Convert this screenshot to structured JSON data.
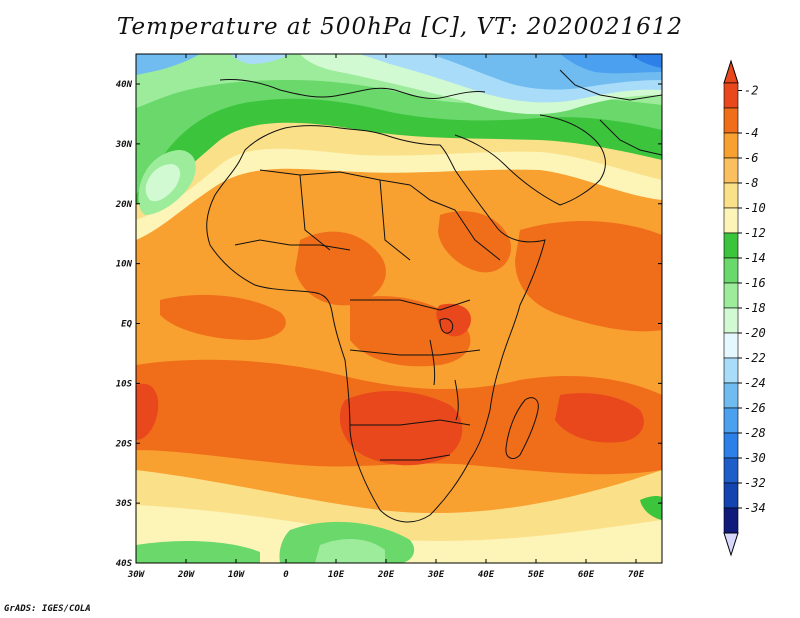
{
  "title": "Temperature at 500hPa [C], VT: 2020021612",
  "credit": "GrADS: IGES/COLA",
  "map": {
    "lon_ticks": [
      "30W",
      "20W",
      "10W",
      "0",
      "10E",
      "20E",
      "30E",
      "40E",
      "50E",
      "60E",
      "70E"
    ],
    "lat_ticks": [
      "40N",
      "30N",
      "20N",
      "10N",
      "EQ",
      "10S",
      "20S",
      "30S",
      "40S"
    ],
    "variable": "temperature",
    "level": "500hPa",
    "units": "C"
  },
  "colorbar": {
    "labels": [
      "-2",
      "-4",
      "-6",
      "-8",
      "-10",
      "-12",
      "-14",
      "-16",
      "-18",
      "-20",
      "-22",
      "-24",
      "-26",
      "-28",
      "-30",
      "-32",
      "-34"
    ],
    "colors": [
      "#e8481c",
      "#f06e1a",
      "#f8a030",
      "#fac060",
      "#fbe08a",
      "#fdf5b8",
      "#3cc43c",
      "#6ad86a",
      "#9cec9c",
      "#d2fad2",
      "#e6f8ff",
      "#a8dcf8",
      "#70bcf0",
      "#4ca0f0",
      "#2c80e8",
      "#1e5ec8",
      "#1444b0",
      "#101a7a"
    ],
    "top_color": "#e8481c",
    "bottom_color": "#d8d8ff"
  },
  "field_colors": {
    "warmest": "#e8481c",
    "warm": "#f06e1a",
    "orange": "#f8a030",
    "light_orange": "#fac060",
    "yellow": "#fbe08a",
    "pale": "#fdf5b8",
    "green": "#3cc43c",
    "light_green": "#6ad86a",
    "pale_green": "#9cec9c",
    "mint": "#d2fad2",
    "sky": "#a8dcf8",
    "blue": "#4ca0f0",
    "dark_blue": "#1e5ec8"
  }
}
